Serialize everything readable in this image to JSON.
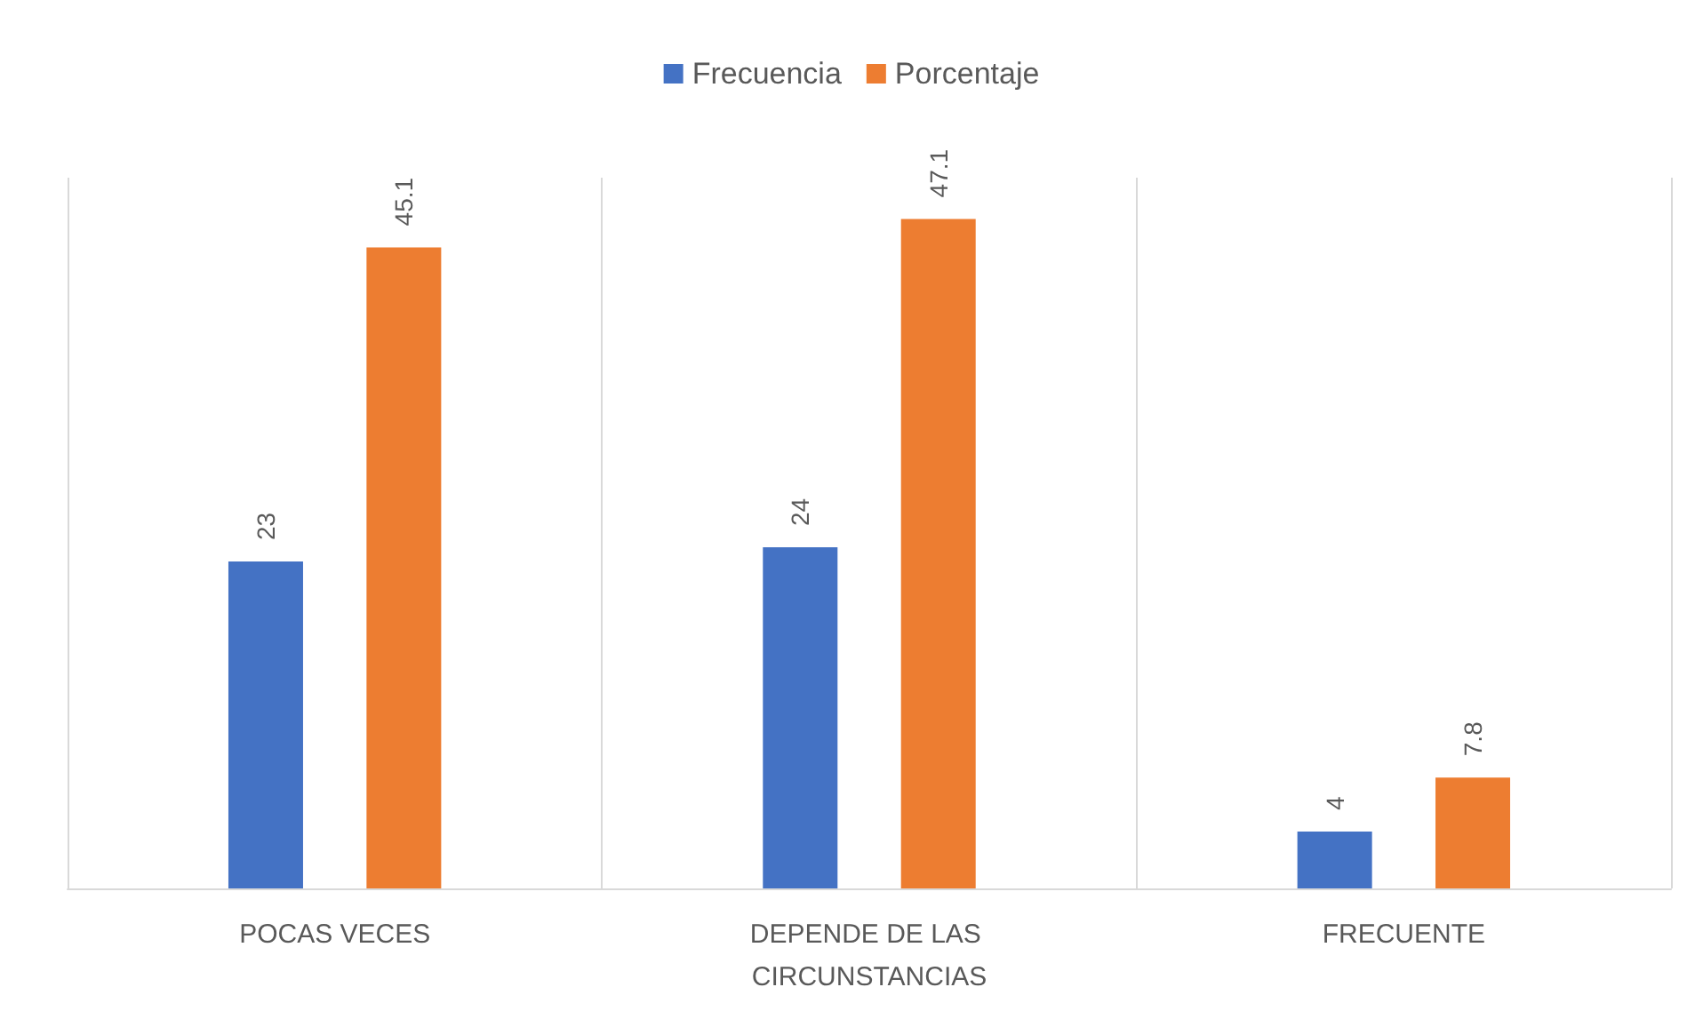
{
  "chart_data": {
    "type": "bar",
    "categories": [
      "POCAS VECES",
      "DEPENDE DE LAS CIRCUNSTANCIAS",
      "FRECUENTE"
    ],
    "series": [
      {
        "name": "Frecuencia",
        "color": "#4472c4",
        "values": [
          23,
          24,
          4
        ]
      },
      {
        "name": "Porcentaje",
        "color": "#ed7d31",
        "values": [
          45.1,
          47.1,
          7.8
        ]
      }
    ],
    "data_labels": true,
    "legend": "top",
    "grid": "x"
  }
}
